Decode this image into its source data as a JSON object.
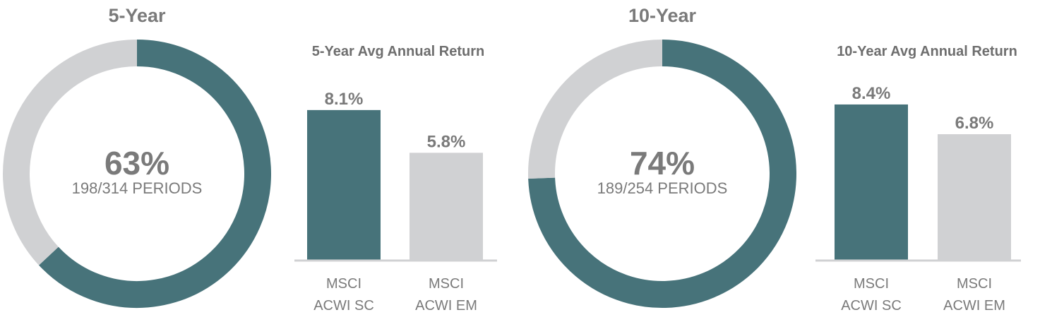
{
  "colors": {
    "primary": "#47737A",
    "secondary": "#D0D1D3",
    "text": "#7A7A7A"
  },
  "chart_data": [
    {
      "type": "pie",
      "title": "5-Year",
      "center_value": "63%",
      "center_caption": "198/314 PERIODS",
      "slices": [
        {
          "value": 198,
          "color": "#47737A"
        },
        {
          "value": 116,
          "color": "#D0D1D3"
        }
      ]
    },
    {
      "type": "bar",
      "title": "5-Year Avg Annual Return",
      "categories": [
        [
          "MSCI",
          "ACWI SC"
        ],
        [
          "MSCI",
          "ACWI EM"
        ]
      ],
      "values": [
        8.1,
        5.8
      ],
      "value_labels": [
        "8.1%",
        "5.8%"
      ],
      "colors": [
        "#47737A",
        "#D0D1D3"
      ],
      "ylim": [
        0,
        9.5
      ]
    },
    {
      "type": "pie",
      "title": "10-Year",
      "center_value": "74%",
      "center_caption": "189/254 PERIODS",
      "slices": [
        {
          "value": 189,
          "color": "#47737A"
        },
        {
          "value": 65,
          "color": "#D0D1D3"
        }
      ]
    },
    {
      "type": "bar",
      "title": "10-Year Avg Annual Return",
      "categories": [
        [
          "MSCI",
          "ACWI SC"
        ],
        [
          "MSCI",
          "ACWI EM"
        ]
      ],
      "values": [
        8.4,
        6.8
      ],
      "value_labels": [
        "8.4%",
        "6.8%"
      ],
      "colors": [
        "#47737A",
        "#D0D1D3"
      ],
      "ylim": [
        0,
        9.5
      ]
    }
  ]
}
